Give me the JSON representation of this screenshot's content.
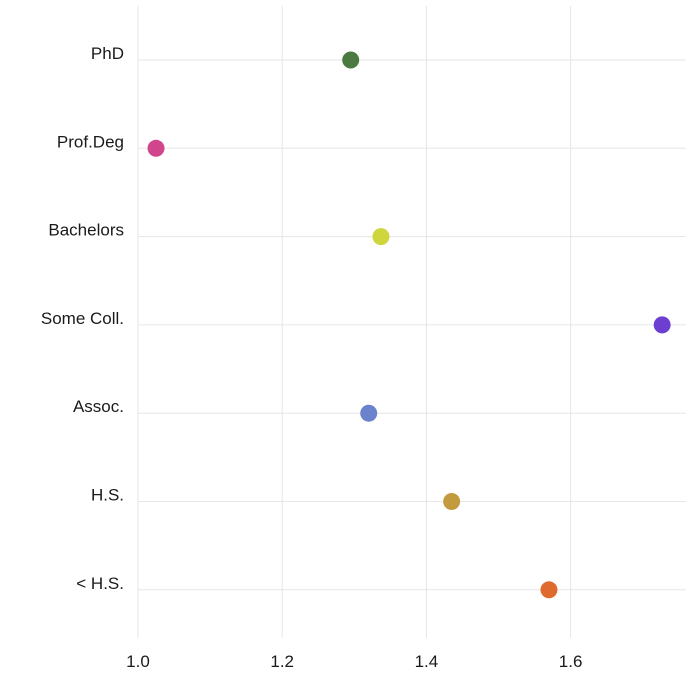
{
  "chart_data": {
    "type": "scatter",
    "title": "",
    "xlabel": "",
    "ylabel": "",
    "xlim": [
      0.98,
      1.76
    ],
    "x_ticks": [
      "1.0",
      "1.2",
      "1.4",
      "1.6"
    ],
    "x_tick_values": [
      1.0,
      1.2,
      1.4,
      1.6
    ],
    "grid": true,
    "legend": "none",
    "categories": [
      "PhD",
      "Prof.Deg",
      "Bachelors",
      "Some Coll.",
      "Assoc.",
      "H.S.",
      "< H.S."
    ],
    "values": [
      1.295,
      1.025,
      1.337,
      1.727,
      1.32,
      1.435,
      1.57
    ],
    "colors": [
      "#4a7a40",
      "#d0458c",
      "#cdd63b",
      "#6d3fd0",
      "#6b82cd",
      "#c49a3e",
      "#de6a2e"
    ]
  }
}
